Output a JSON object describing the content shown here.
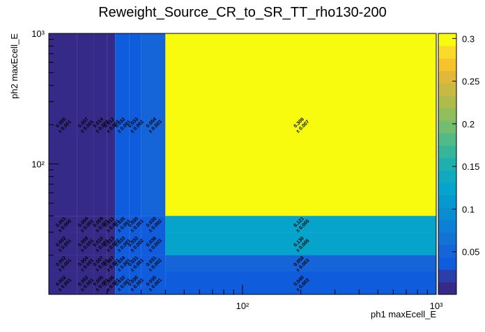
{
  "chart_data": {
    "type": "heatmap",
    "title": "Reweight_Source_CR_to_SR_TT_rho130-200",
    "xlabel": "ph1 maxEcell_E",
    "ylabel": "ph2 maxEcell_E",
    "xscale": "log",
    "yscale": "log",
    "xbins": [
      10,
      14,
      17,
      20,
      22,
      26,
      30,
      40,
      1000
    ],
    "ybins": [
      10,
      15,
      20,
      30,
      40,
      1000
    ],
    "xlim": [
      10,
      1000
    ],
    "ylim": [
      10,
      1000
    ],
    "xticks": [
      {
        "value": 100,
        "label": "10²"
      },
      {
        "value": 1000,
        "label": "10³"
      }
    ],
    "yticks": [
      {
        "value": 100,
        "label": "10²"
      },
      {
        "value": 1000,
        "label": "10³"
      }
    ],
    "xminorticks": [
      20,
      30,
      40,
      50,
      60,
      70,
      80,
      90,
      200,
      300,
      400,
      500,
      600,
      700,
      800,
      900
    ],
    "yminorticks": [
      20,
      30,
      40,
      50,
      60,
      70,
      80,
      90,
      200,
      300,
      400,
      500,
      600,
      700,
      800,
      900
    ],
    "z": [
      [
        0.002,
        0.002,
        0.005,
        0.006,
        0.032,
        0.03,
        0.03,
        0.04
      ],
      [
        0.002,
        0.004,
        0.007,
        0.007,
        0.034,
        0.031,
        0.031,
        0.058
      ],
      [
        0.002,
        0.008,
        0.01,
        0.013,
        0.033,
        0.032,
        0.036,
        0.13
      ],
      [
        0.001,
        0.004,
        0.009,
        0.011,
        0.035,
        0.03,
        0.03,
        0.121
      ],
      [
        0.005,
        0.007,
        0.014,
        0.012,
        0.032,
        0.033,
        0.054,
        0.306
      ]
    ],
    "value_labels": [
      [
        "0.002",
        "0.002",
        "0.005",
        "0.006",
        "0.032",
        "0.030",
        "0.030",
        "0.040"
      ],
      [
        "0.002",
        "0.004",
        "0.007",
        "0.007",
        "0.034",
        "0.031",
        "0.031",
        "0.058"
      ],
      [
        "0.002",
        "0.008",
        "0.010",
        "0.013",
        "0.033",
        "0.032",
        "0.036",
        "0.130"
      ],
      [
        "0.001",
        "0.004",
        "0.009",
        "0.011",
        "0.035",
        "0.030",
        "0.030",
        "0.121"
      ],
      [
        "0.005",
        "0.007",
        "0.014",
        "0.012",
        "0.032",
        "0.033",
        "0.054",
        "0.306"
      ]
    ],
    "errors": [
      [
        0.001,
        0.001,
        0.001,
        0.001,
        0.001,
        0.001,
        0.001,
        0.003
      ],
      [
        0.001,
        0.001,
        0.001,
        0.001,
        0.001,
        0.001,
        0.002,
        0.003
      ],
      [
        0.001,
        0.001,
        0.001,
        0.002,
        0.001,
        0.002,
        0.003,
        0.005
      ],
      [
        0,
        0.001,
        0.001,
        0.001,
        0.001,
        0.001,
        0.002,
        0.005
      ],
      [
        0.001,
        0.001,
        0.002,
        0.003,
        0.001,
        0.002,
        0.003,
        0.007
      ]
    ],
    "error_labels": [
      [
        "± 0.001",
        "± 0.001",
        "± 0.001",
        "± 0.001",
        "± 0.001",
        "± 0.001",
        "± 0.001",
        "± 0.003"
      ],
      [
        "± 0.001",
        "± 0.001",
        "± 0.001",
        "± 0.001",
        "± 0.001",
        "± 0.001",
        "± 0.002",
        "± 0.003"
      ],
      [
        "± 0.001",
        "± 0.001",
        "± 0.001",
        "± 0.002",
        "± 0.001",
        "± 0.002",
        "± 0.003",
        "± 0.005"
      ],
      [
        "± 0.000",
        "± 0.001",
        "± 0.001",
        "± 0.001",
        "± 0.001",
        "± 0.001",
        "± 0.002",
        "± 0.005"
      ],
      [
        "± 0.001",
        "± 0.001",
        "± 0.002",
        "± 0.003",
        "± 0.001",
        "± 0.002",
        "± 0.003",
        "± 0.007"
      ]
    ],
    "zlim": [
      0,
      0.306
    ],
    "zticks": [
      0.05,
      0.1,
      0.15,
      0.2,
      0.25,
      0.3
    ],
    "palette": [
      "#352a87",
      "#2c3fa8",
      "#0f5cdd",
      "#1565d8",
      "#1373d4",
      "#0c80d6",
      "#0a8ccd",
      "#0898d0",
      "#06a4ca",
      "#10aabe",
      "#1fb0ad",
      "#35b69b",
      "#52ba86",
      "#72bd70",
      "#91be5c",
      "#aebc4d",
      "#c8b942",
      "#e0b93a",
      "#f5c42c",
      "#f9d929",
      "#f9fb0e"
    ]
  }
}
